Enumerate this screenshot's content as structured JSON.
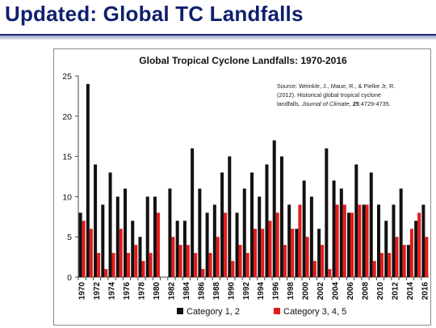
{
  "slide": {
    "title": "Updated: Global TC Landfalls",
    "title_color": "#0f1f6e"
  },
  "chart_data": {
    "type": "bar",
    "title": "Global Tropical Cyclone Landfalls: 1970-2016",
    "xlabel": "",
    "ylabel": "",
    "ylim": [
      0,
      25
    ],
    "yticks": [
      0,
      5,
      10,
      15,
      20,
      25
    ],
    "grid": false,
    "legend_position": "bottom",
    "years": [
      1970,
      1971,
      1972,
      1973,
      1974,
      1975,
      1976,
      1977,
      1978,
      1979,
      1980,
      1981,
      1982,
      1983,
      1984,
      1985,
      1986,
      1987,
      1988,
      1989,
      1990,
      1991,
      1992,
      1993,
      1994,
      1995,
      1996,
      1997,
      1998,
      1999,
      2000,
      2001,
      2002,
      2003,
      2004,
      2005,
      2006,
      2007,
      2008,
      2009,
      2010,
      2011,
      2012,
      2013,
      2014,
      2015,
      2016
    ],
    "tick_labels": [
      "1970",
      "1972",
      "1974",
      "1976",
      "1978",
      "1980",
      "1982",
      "1984",
      "1986",
      "1988",
      "1990",
      "1992",
      "1994",
      "1996",
      "1998",
      "2000",
      "2002",
      "2004",
      "2006",
      "2008",
      "2010",
      "2012",
      "2014",
      "2016"
    ],
    "series": [
      {
        "name": "Category 1, 2",
        "color": "#111111",
        "values": [
          8,
          24,
          14,
          9,
          13,
          10,
          11,
          7,
          5,
          10,
          10,
          0,
          11,
          7,
          7,
          16,
          11,
          8,
          9,
          13,
          15,
          8,
          11,
          13,
          10,
          14,
          17,
          15,
          9,
          6,
          12,
          10,
          6,
          16,
          12,
          11,
          8,
          14,
          9,
          13,
          9,
          7,
          9,
          11,
          4,
          7,
          9
        ]
      },
      {
        "name": "Category 3, 4, 5",
        "color": "#e31b1b",
        "values": [
          7,
          6,
          3,
          1,
          3,
          6,
          3,
          4,
          2,
          3,
          8,
          0,
          5,
          4,
          4,
          3,
          1,
          3,
          5,
          8,
          2,
          4,
          3,
          6,
          6,
          7,
          8,
          4,
          6,
          9,
          5,
          2,
          4,
          1,
          9,
          9,
          8,
          9,
          9,
          2,
          3,
          3,
          5,
          4,
          6,
          8,
          5
        ]
      }
    ],
    "annotation": {
      "line1": "Source: Weinkle, J., Maue, R., & Pielke Jr, R.",
      "line2": "(2012). Historical global tropical cyclone",
      "line3_prefix": "landfalls. ",
      "line3_journal": "Journal of Climate",
      "line3_mid": ", ",
      "line3_volume": "25",
      "line3_suffix": ":4729-4735."
    }
  }
}
